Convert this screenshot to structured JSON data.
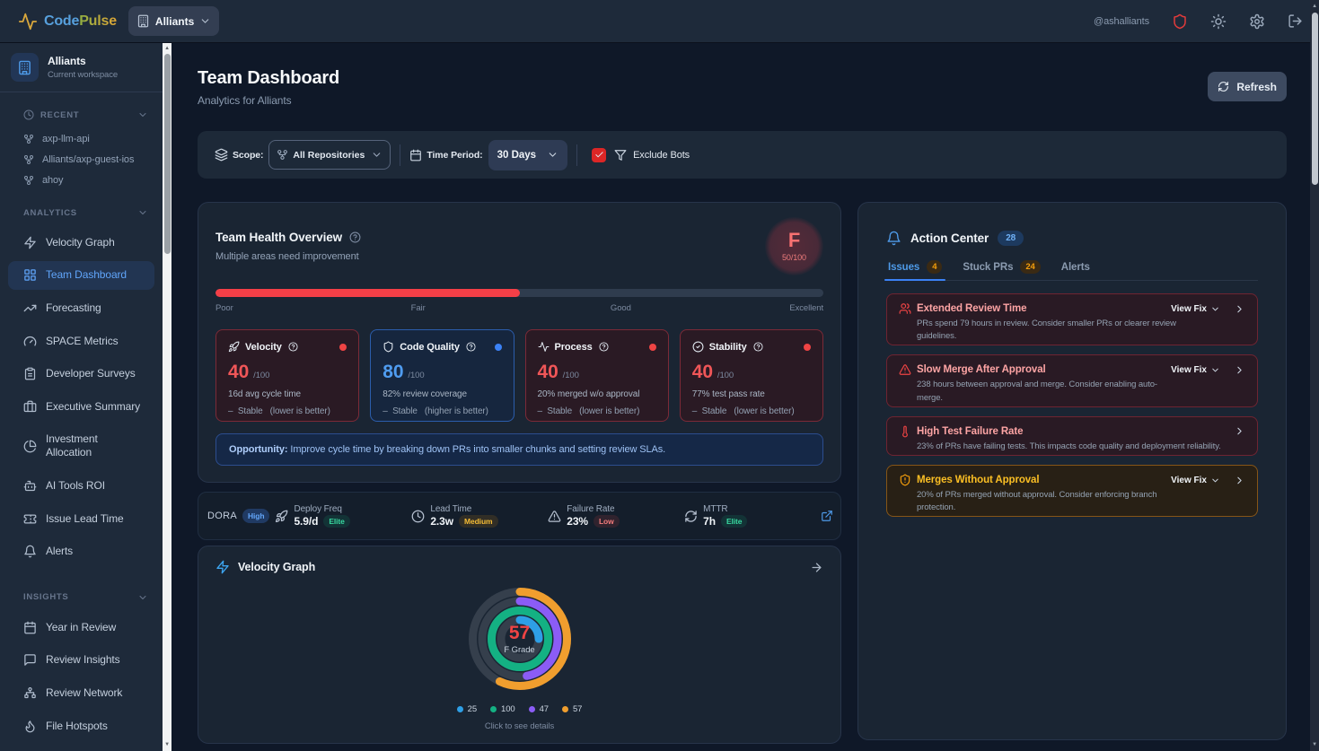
{
  "brand": {
    "code": "Code",
    "pulse": "Pulse"
  },
  "header": {
    "workspace_button": "Alliants",
    "username": "@ashalliants",
    "icons": [
      "shield",
      "sun",
      "gear",
      "logout"
    ]
  },
  "sidebar": {
    "workspace": {
      "name": "Alliants",
      "subtitle": "Current workspace"
    },
    "recent": {
      "label": "RECENT",
      "items": [
        {
          "label": "axp-llm-api"
        },
        {
          "label": "Alliants/axp-guest-ios"
        },
        {
          "label": "ahoy"
        }
      ]
    },
    "analytics": {
      "label": "ANALYTICS",
      "items": [
        {
          "label": "Velocity Graph",
          "icon": "zap",
          "active": false
        },
        {
          "label": "Team Dashboard",
          "icon": "layout-grid",
          "active": true
        },
        {
          "label": "Forecasting",
          "icon": "trending-up",
          "active": false
        },
        {
          "label": "SPACE Metrics",
          "icon": "gauge",
          "active": false
        },
        {
          "label": "Developer Surveys",
          "icon": "clipboard",
          "active": false
        },
        {
          "label": "Executive Summary",
          "icon": "briefcase",
          "active": false
        },
        {
          "label": "Investment Allocation",
          "icon": "pie-chart",
          "active": false
        },
        {
          "label": "AI Tools ROI",
          "icon": "bot",
          "active": false
        },
        {
          "label": "Issue Lead Time",
          "icon": "ticket",
          "active": false
        },
        {
          "label": "Alerts",
          "icon": "bell",
          "active": false
        }
      ]
    },
    "insights": {
      "label": "INSIGHTS",
      "items": [
        {
          "label": "Year in Review",
          "icon": "calendar",
          "active": false
        },
        {
          "label": "Review Insights",
          "icon": "message-square",
          "active": false
        },
        {
          "label": "Review Network",
          "icon": "network",
          "active": false
        },
        {
          "label": "File Hotspots",
          "icon": "flame",
          "active": false
        }
      ]
    }
  },
  "page": {
    "title": "Team Dashboard",
    "subtitle": "Analytics for Alliants",
    "refresh_label": "Refresh"
  },
  "filters": {
    "scope_label": "Scope:",
    "scope_value": "All Repositories",
    "period_label": "Time Period:",
    "period_value": "30 Days",
    "exclude_bots_label": "Exclude Bots",
    "exclude_bots_checked": true
  },
  "health": {
    "title": "Team Health Overview",
    "subtitle": "Multiple areas need improvement",
    "grade": "F",
    "score": "50/100",
    "bar_percent": 50,
    "scale_labels": [
      "Poor",
      "Fair",
      "Good",
      "Excellent"
    ],
    "metrics": [
      {
        "name": "Velocity",
        "icon": "rocket",
        "tone": "red",
        "value": "40",
        "max": "/100",
        "detail": "16d avg cycle time",
        "trend": "Stable",
        "trend_note": "(lower is better)"
      },
      {
        "name": "Code Quality",
        "icon": "shield",
        "tone": "blue",
        "value": "80",
        "max": "/100",
        "detail": "82% review coverage",
        "trend": "Stable",
        "trend_note": "(higher is better)"
      },
      {
        "name": "Process",
        "icon": "activity",
        "tone": "red",
        "value": "40",
        "max": "/100",
        "detail": "20% merged w/o approval",
        "trend": "Stable",
        "trend_note": "(lower is better)"
      },
      {
        "name": "Stability",
        "icon": "check-circle",
        "tone": "red",
        "value": "40",
        "max": "/100",
        "detail": "77% test pass rate",
        "trend": "Stable",
        "trend_note": "(lower is better)"
      }
    ],
    "opportunity_label": "Opportunity:",
    "opportunity_text": "Improve cycle time by breaking down PRs into smaller chunks and setting review SLAs."
  },
  "dora": {
    "label": "DORA",
    "level": "High",
    "stats": [
      {
        "icon": "rocket",
        "name": "Deploy Freq",
        "value": "5.9/d",
        "badge": "Elite",
        "tone": "green"
      },
      {
        "icon": "clock",
        "name": "Lead Time",
        "value": "2.3w",
        "badge": "Medium",
        "tone": "amber"
      },
      {
        "icon": "alert-triangle",
        "name": "Failure Rate",
        "value": "23%",
        "badge": "Low",
        "tone": "red"
      },
      {
        "icon": "refresh",
        "name": "MTTR",
        "value": "7h",
        "badge": "Elite",
        "tone": "green"
      }
    ]
  },
  "velocity_card": {
    "title": "Velocity Graph",
    "center_value": "57",
    "center_label": "F Grade",
    "hint": "Click to see details"
  },
  "chart_data": {
    "type": "donut-rings",
    "title": "Velocity Graph",
    "center_value": 57,
    "center_label": "F Grade",
    "rings": [
      {
        "value": 25,
        "max": 100,
        "color": "#2e9fe6",
        "radius": 21
      },
      {
        "value": 100,
        "max": 100,
        "color": "#14b183",
        "radius": 31.5
      },
      {
        "value": 47,
        "max": 100,
        "color": "#8b5cf6",
        "radius": 42
      },
      {
        "value": 57,
        "max": 100,
        "color": "#f09e2e",
        "radius": 52.5
      }
    ],
    "legend": [
      "25",
      "100",
      "47",
      "57"
    ],
    "start_angle": "top",
    "direction": "clockwise"
  },
  "action_center": {
    "title": "Action Center",
    "count": "28",
    "tabs": [
      {
        "label": "Issues",
        "badge": "4",
        "active": true
      },
      {
        "label": "Stuck PRs",
        "badge": "24",
        "active": false
      },
      {
        "label": "Alerts",
        "badge": null,
        "active": false
      }
    ],
    "view_fix_label": "View Fix",
    "issues": [
      {
        "icon": "users",
        "tone": "red",
        "title": "Extended Review Time",
        "description": "PRs spend 79 hours in review. Consider smaller PRs or clearer review guidelines.",
        "has_action": true
      },
      {
        "icon": "alert-triangle",
        "tone": "red",
        "title": "Slow Merge After Approval",
        "description": "238 hours between approval and merge. Consider enabling auto-merge.",
        "has_action": true
      },
      {
        "icon": "thermometer",
        "tone": "red",
        "title": "High Test Failure Rate",
        "description": "23% of PRs have failing tests. This impacts code quality and deployment reliability.",
        "has_action": false
      },
      {
        "icon": "shield-alert",
        "tone": "amber",
        "title": "Merges Without Approval",
        "description": "20% of PRs merged without approval. Consider enforcing branch protection.",
        "has_action": true
      }
    ]
  }
}
